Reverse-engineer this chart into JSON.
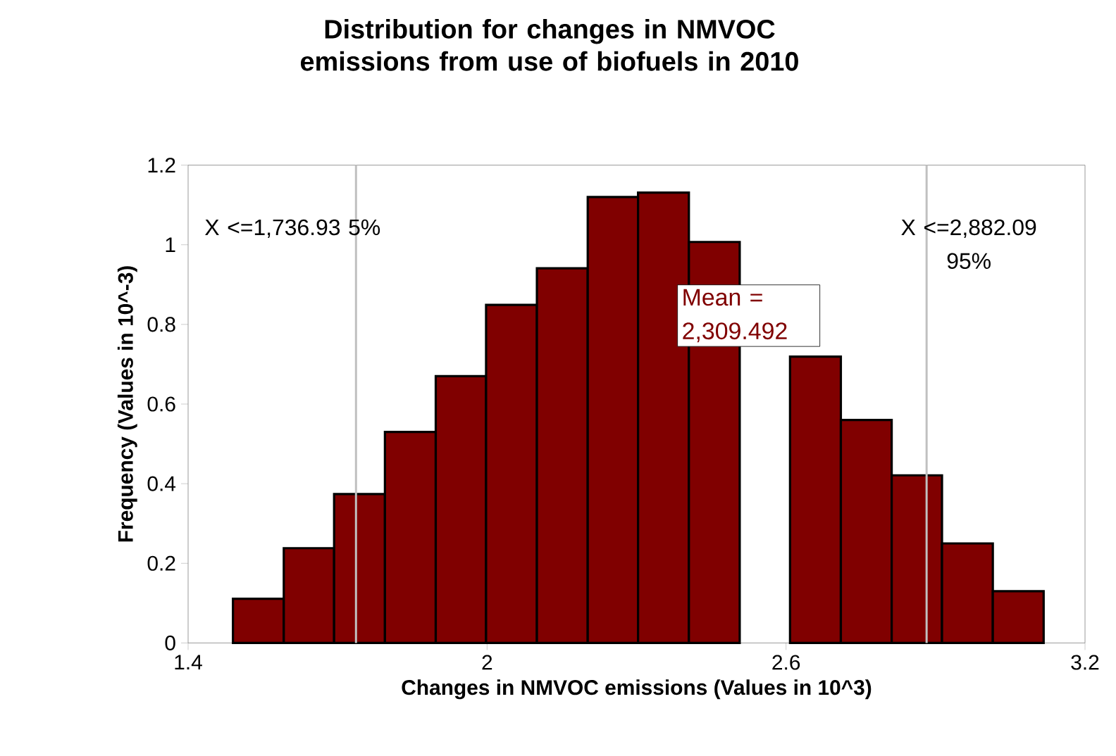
{
  "chart_data": {
    "type": "histogram",
    "title": "Distribution for changes in NMVOC emissions from use of biofuels in 2010",
    "xlabel": "Changes in NMVOC emissions (Values in 10^3)",
    "ylabel": "Frequency (Values in 10^-3)",
    "bins": [
      1.49,
      1.592,
      1.693,
      1.795,
      1.897,
      1.998,
      2.1,
      2.202,
      2.303,
      2.405,
      2.507,
      2.608,
      2.71,
      2.812,
      2.913,
      3.015,
      3.117
    ],
    "values": [
      0.111,
      0.238,
      0.374,
      0.53,
      0.67,
      0.849,
      0.941,
      1.12,
      1.131,
      1.007,
      null,
      0.719,
      0.56,
      0.421,
      0.25,
      0.13
    ],
    "color": "#800000",
    "xlim": [
      1.4,
      3.2
    ],
    "xticks": [
      1.4,
      2,
      2.6,
      3.2
    ],
    "ylim": [
      0,
      1.2
    ],
    "yticks": [
      0,
      0.2,
      0.4,
      0.6,
      0.8,
      1,
      1.2
    ],
    "ref_lines": [
      {
        "axis": "x",
        "value": 1.73693,
        "label": "X <=1,736.93 5%",
        "color": "#c0c0c0"
      },
      {
        "axis": "x",
        "value": 2.88209,
        "label": "X <=2,882.09 95%",
        "color": "#c0c0c0"
      }
    ],
    "annotations": [
      "Mean = 2,309.492"
    ],
    "grid": false
  }
}
